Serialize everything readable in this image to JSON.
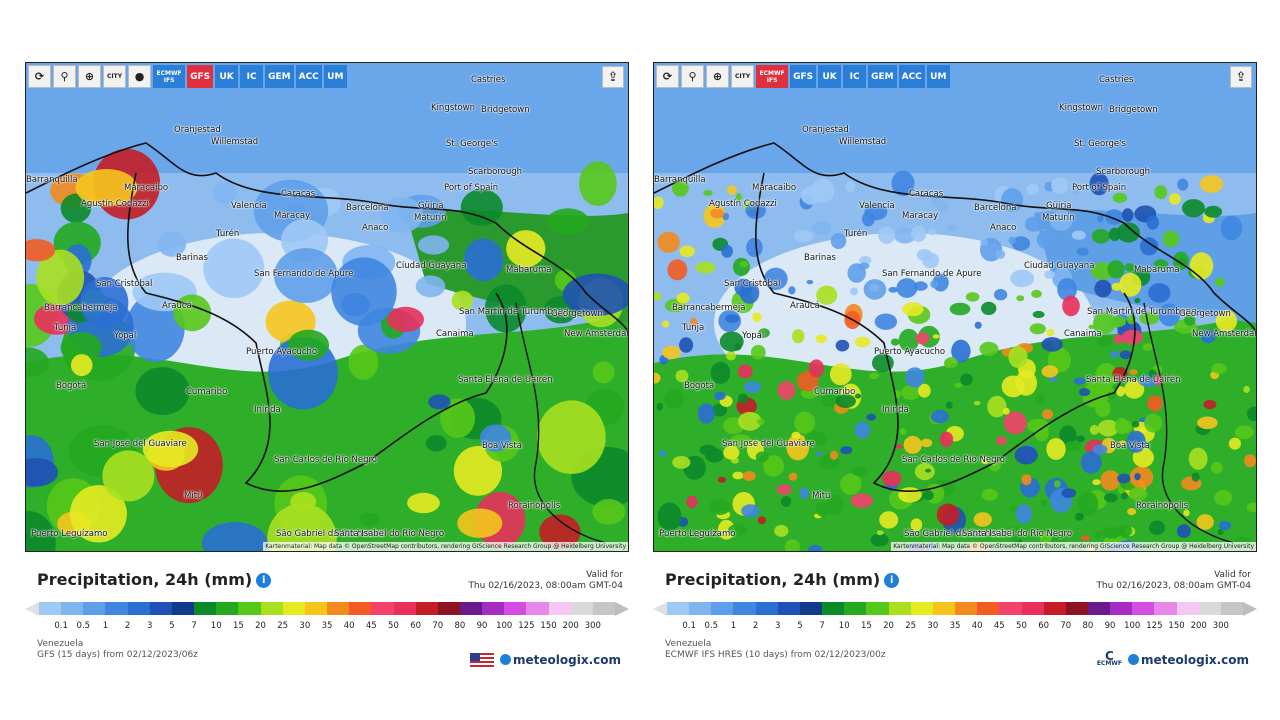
{
  "panels": [
    {
      "toolbar": {
        "tools": [
          "⟳",
          "⚲",
          "⊕",
          "CITY"
        ],
        "dot": "●",
        "models": [
          {
            "label": "ECMWF IFS",
            "active": false
          },
          {
            "label": "GFS",
            "active": true
          },
          {
            "label": "UK",
            "active": false
          },
          {
            "label": "IC",
            "active": false
          },
          {
            "label": "GEM",
            "active": false
          },
          {
            "label": "ACC",
            "active": false
          },
          {
            "label": "UM",
            "active": false
          }
        ],
        "share": "⇪"
      },
      "cities": [
        "Castries",
        "Kingstown",
        "Bridgetown",
        "Oranjestad",
        "Willemstad",
        "St. George's",
        "Scarborough",
        "Port of Spain",
        "Barranquilla",
        "Maracaibo",
        "Caracas",
        "Valencia",
        "Maracay",
        "Barcelona",
        "Güiria",
        "Agustín Codazzi",
        "Maturín",
        "Anaco",
        "Turén",
        "Barinas",
        "Ciudad Guayana",
        "Mabaruma",
        "San Cristóbal",
        "San Fernando de Apure",
        "Araucá",
        "Barrancabermeja",
        "San Martín de Turumbang",
        "Georgetown",
        "New Amsterdam",
        "Canaima",
        "Tunja",
        "Yopal",
        "Puerto Ayacucho",
        "Bogotá",
        "Cumaribo",
        "Santa Elena de Uairén",
        "Inírida",
        "Boa Vista",
        "San José del Guaviare",
        "San Carlos de Río Negro",
        "Mitú",
        "Rorainópolis",
        "Puerto Leguízamo",
        "São Gabriel da Cachoeira",
        "Santa Isabel do Rio Negro"
      ],
      "attribution": "Kartenmaterial: Map data © OpenStreetMap contributors, rendering GIScience Research Group @ Heidelberg University",
      "title": "Precipitation, 24h (mm)",
      "valid_label": "Valid for",
      "valid_time": "Thu 02/16/2023, 08:00am GMT-04",
      "region": "Venezuela",
      "model_run": "GFS (15 days) from 02/12/2023/06z",
      "brand": "meteologix.com"
    },
    {
      "toolbar": {
        "tools": [
          "⟳",
          "⚲",
          "⊕",
          "CITY"
        ],
        "dot": "",
        "models": [
          {
            "label": "ECMWF IFS",
            "active": true
          },
          {
            "label": "GFS",
            "active": false
          },
          {
            "label": "UK",
            "active": false
          },
          {
            "label": "IC",
            "active": false
          },
          {
            "label": "GEM",
            "active": false
          },
          {
            "label": "ACC",
            "active": false
          },
          {
            "label": "UM",
            "active": false
          }
        ],
        "share": "⇪"
      },
      "cities": [
        "Castries",
        "Kingstown",
        "Bridgetown",
        "Oranjestad",
        "Willemstad",
        "St. George's",
        "Scarborough",
        "Port of Spain",
        "Barranquilla",
        "Maracaibo",
        "Caracas",
        "Valencia",
        "Maracay",
        "Barcelona",
        "Güiria",
        "Agustín Codazzi",
        "Maturín",
        "Anaco",
        "Turén",
        "Barinas",
        "Ciudad Guayana",
        "Mabaruma",
        "San Cristóbal",
        "San Fernando de Apure",
        "Araucá",
        "Barrancabermeja",
        "San Martín de Turumbang",
        "Georgetown",
        "New Amsterdam",
        "Canaima",
        "Tunja",
        "Yopal",
        "Puerto Ayacucho",
        "Bogotá",
        "Cumaribo",
        "Santa Elena de Uairén",
        "Inírida",
        "Boa Vista",
        "San José del Guaviare",
        "San Carlos de Río Negro",
        "Mitú",
        "Rorainópolis",
        "Puerto Leguízamo",
        "São Gabriel da Cachoeira",
        "Santa Isabel do Rio Negro"
      ],
      "attribution": "Kartenmaterial: Map data © OpenStreetMap contributors, rendering GIScience Research Group @ Heidelberg University",
      "title": "Precipitation, 24h (mm)",
      "valid_label": "Valid for",
      "valid_time": "Thu 02/16/2023, 08:00am GMT-04",
      "region": "Venezuela",
      "model_run": "ECMWF IFS HRES (10 days) from 02/12/2023/00z",
      "brand": "meteologix.com",
      "ecmwf_label": "ECMWF"
    }
  ],
  "legend": {
    "ticks": [
      "0.1",
      "0.5",
      "1",
      "2",
      "3",
      "5",
      "7",
      "10",
      "15",
      "20",
      "25",
      "30",
      "35",
      "40",
      "45",
      "50",
      "60",
      "70",
      "80",
      "90",
      "100",
      "125",
      "150",
      "200",
      "300"
    ],
    "colors": [
      "#9fc9f5",
      "#7fb5ef",
      "#5f9fe9",
      "#3f86e0",
      "#2a6fd3",
      "#1f52b4",
      "#123a8c",
      "#0b8a2a",
      "#24a81f",
      "#56c81a",
      "#a8e020",
      "#e6ea22",
      "#f5c51e",
      "#f38a1e",
      "#f25b23",
      "#f3436a",
      "#e8305a",
      "#c41d25",
      "#8e1322",
      "#6a1a8a",
      "#a52bc2",
      "#d34de0",
      "#e787ea",
      "#f4c7f4",
      "#d9d9d9",
      "#c6c6c6"
    ]
  }
}
